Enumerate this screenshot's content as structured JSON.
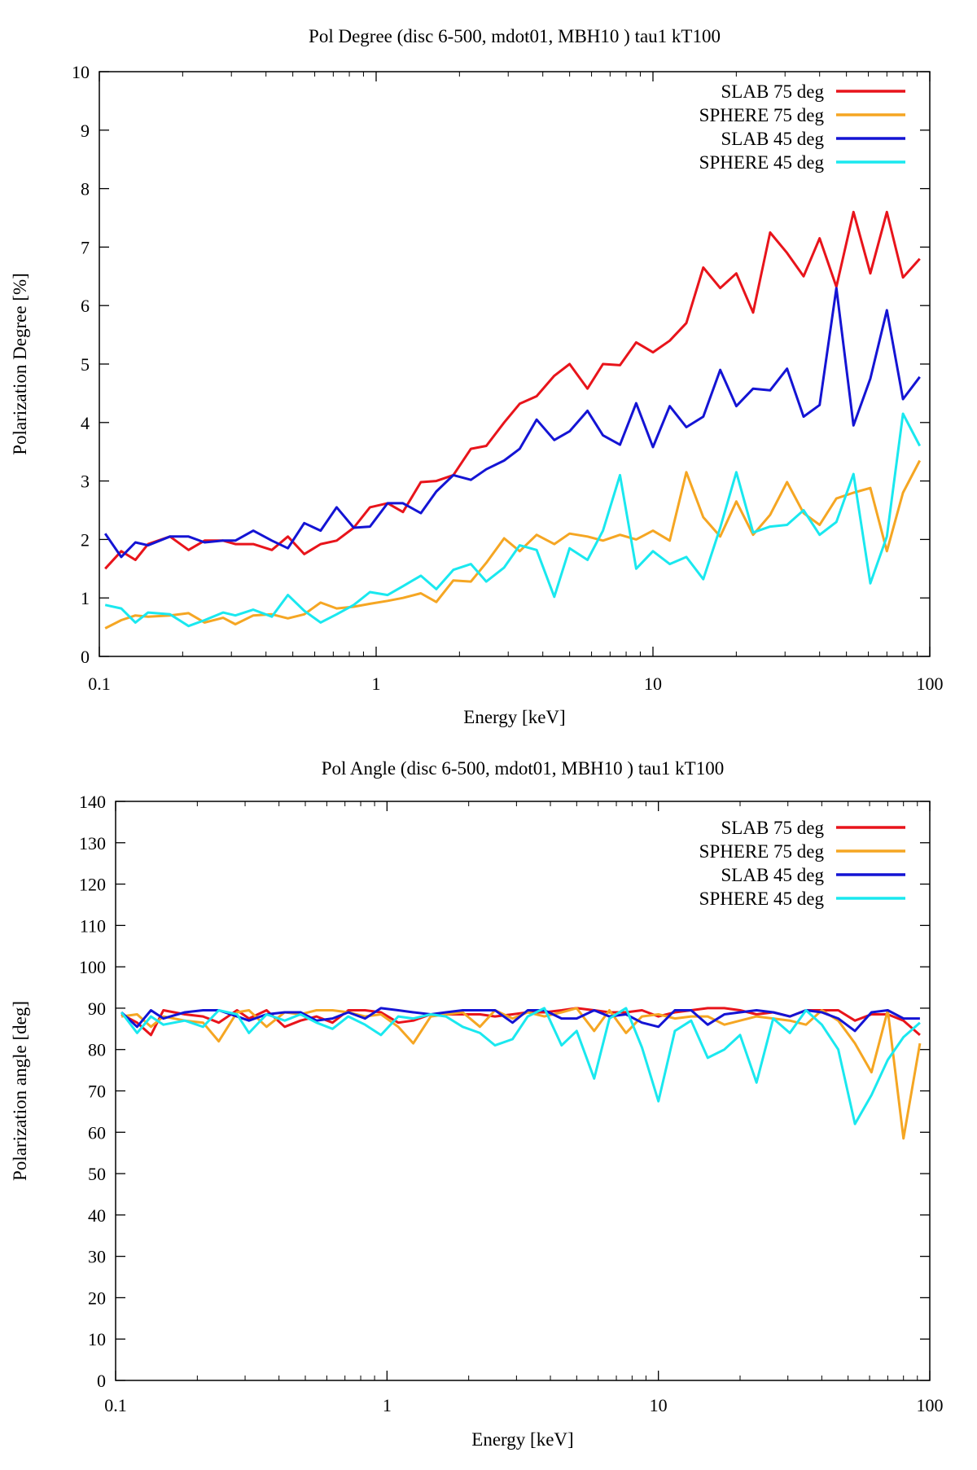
{
  "chart_data": [
    {
      "id": "degree",
      "type": "line",
      "title": "Pol Degree (disc 6-500, mdot01, MBH10 ) tau1 kT100",
      "xlabel": "Energy [keV]",
      "ylabel": "Polarization Degree [%]",
      "xscale": "log",
      "xlim": [
        0.1,
        100
      ],
      "ylim": [
        0,
        10
      ],
      "xticks": [
        0.1,
        1,
        10,
        100
      ],
      "xtick_labels": [
        "0.1",
        "1",
        "10",
        "100"
      ],
      "yticks": [
        0,
        1,
        2,
        3,
        4,
        5,
        6,
        7,
        8,
        9,
        10
      ],
      "ytick_labels": [
        "0",
        "1",
        "2",
        "3",
        "4",
        "5",
        "6",
        "7",
        "8",
        "9",
        "10"
      ],
      "grid": false,
      "legend_position": "top-right",
      "series": [
        {
          "name": "SLAB 75 deg",
          "color": "#e8141b",
          "x": [
            0.105,
            0.12,
            0.135,
            0.15,
            0.18,
            0.21,
            0.24,
            0.28,
            0.31,
            0.36,
            0.42,
            0.48,
            0.55,
            0.63,
            0.72,
            0.83,
            0.95,
            1.1,
            1.25,
            1.45,
            1.65,
            1.9,
            2.2,
            2.5,
            2.9,
            3.3,
            3.8,
            4.4,
            5.0,
            5.8,
            6.6,
            7.6,
            8.7,
            10.0,
            11.5,
            13.2,
            15.2,
            17.5,
            20.0,
            23.0,
            26.5,
            30.5,
            35.0,
            40.0,
            46.0,
            53.0,
            61.0,
            70.0,
            80.0,
            92.0
          ],
          "y": [
            1.5,
            1.8,
            1.65,
            1.92,
            2.05,
            1.82,
            1.98,
            1.98,
            1.92,
            1.92,
            1.82,
            2.05,
            1.75,
            1.92,
            1.98,
            2.2,
            2.55,
            2.62,
            2.47,
            2.98,
            3.0,
            3.1,
            3.55,
            3.6,
            4.0,
            4.32,
            4.45,
            4.8,
            5.0,
            4.58,
            5.0,
            4.98,
            5.37,
            5.2,
            5.4,
            5.7,
            6.65,
            6.3,
            6.55,
            5.88,
            7.25,
            6.9,
            6.5,
            7.15,
            6.32,
            7.6,
            6.55,
            7.6,
            6.48,
            6.8
          ]
        },
        {
          "name": "SPHERE 75 deg",
          "color": "#f5a623",
          "x": [
            0.105,
            0.12,
            0.135,
            0.15,
            0.18,
            0.21,
            0.24,
            0.28,
            0.31,
            0.36,
            0.42,
            0.48,
            0.55,
            0.63,
            0.72,
            0.83,
            0.95,
            1.1,
            1.25,
            1.45,
            1.65,
            1.9,
            2.2,
            2.5,
            2.9,
            3.3,
            3.8,
            4.4,
            5.0,
            5.8,
            6.6,
            7.6,
            8.7,
            10.0,
            11.5,
            13.2,
            15.2,
            17.5,
            20.0,
            23.0,
            26.5,
            30.5,
            35.0,
            40.0,
            46.0,
            53.0,
            61.0,
            70.0,
            80.0,
            92.0
          ],
          "y": [
            0.48,
            0.62,
            0.7,
            0.68,
            0.7,
            0.74,
            0.58,
            0.66,
            0.55,
            0.7,
            0.72,
            0.65,
            0.72,
            0.92,
            0.82,
            0.85,
            0.9,
            0.95,
            1.0,
            1.08,
            0.93,
            1.3,
            1.28,
            1.6,
            2.02,
            1.8,
            2.08,
            1.92,
            2.1,
            2.05,
            1.98,
            2.08,
            2.0,
            2.15,
            1.98,
            3.15,
            2.38,
            2.05,
            2.65,
            2.08,
            2.42,
            2.98,
            2.45,
            2.25,
            2.7,
            2.8,
            2.88,
            1.8,
            2.8,
            3.35
          ]
        },
        {
          "name": "SLAB 45 deg",
          "color": "#1414d4",
          "x": [
            0.105,
            0.12,
            0.135,
            0.15,
            0.18,
            0.21,
            0.24,
            0.28,
            0.31,
            0.36,
            0.42,
            0.48,
            0.55,
            0.63,
            0.72,
            0.83,
            0.95,
            1.1,
            1.25,
            1.45,
            1.65,
            1.9,
            2.2,
            2.5,
            2.9,
            3.3,
            3.8,
            4.4,
            5.0,
            5.8,
            6.6,
            7.6,
            8.7,
            10.0,
            11.5,
            13.2,
            15.2,
            17.5,
            20.0,
            23.0,
            26.5,
            30.5,
            35.0,
            40.0,
            46.0,
            53.0,
            61.0,
            70.0,
            80.0,
            92.0
          ],
          "y": [
            2.1,
            1.7,
            1.95,
            1.9,
            2.05,
            2.05,
            1.95,
            1.98,
            1.98,
            2.15,
            1.98,
            1.85,
            2.28,
            2.15,
            2.55,
            2.2,
            2.22,
            2.62,
            2.62,
            2.45,
            2.82,
            3.1,
            3.02,
            3.2,
            3.35,
            3.55,
            4.05,
            3.7,
            3.85,
            4.2,
            3.78,
            3.62,
            4.33,
            3.58,
            4.28,
            3.92,
            4.1,
            4.9,
            4.28,
            4.58,
            4.55,
            4.92,
            4.1,
            4.3,
            6.3,
            3.95,
            4.75,
            5.92,
            4.4,
            4.78
          ]
        },
        {
          "name": "SPHERE 45 deg",
          "color": "#1ae8ef",
          "x": [
            0.105,
            0.12,
            0.135,
            0.15,
            0.18,
            0.21,
            0.24,
            0.28,
            0.31,
            0.36,
            0.42,
            0.48,
            0.55,
            0.63,
            0.72,
            0.83,
            0.95,
            1.1,
            1.25,
            1.45,
            1.65,
            1.9,
            2.2,
            2.5,
            2.9,
            3.3,
            3.8,
            4.4,
            5.0,
            5.8,
            6.6,
            7.6,
            8.7,
            10.0,
            11.5,
            13.2,
            15.2,
            17.5,
            20.0,
            23.0,
            26.5,
            30.5,
            35.0,
            40.0,
            46.0,
            53.0,
            61.0,
            70.0,
            80.0,
            92.0
          ],
          "y": [
            0.88,
            0.82,
            0.58,
            0.75,
            0.72,
            0.52,
            0.62,
            0.75,
            0.7,
            0.8,
            0.68,
            1.05,
            0.78,
            0.58,
            0.72,
            0.88,
            1.1,
            1.05,
            1.2,
            1.38,
            1.15,
            1.48,
            1.58,
            1.28,
            1.52,
            1.9,
            1.82,
            1.02,
            1.85,
            1.65,
            2.15,
            3.1,
            1.5,
            1.8,
            1.58,
            1.7,
            1.32,
            2.2,
            3.15,
            2.12,
            2.22,
            2.25,
            2.5,
            2.08,
            2.3,
            3.12,
            1.25,
            2.05,
            4.15,
            3.6
          ]
        }
      ]
    },
    {
      "id": "angle",
      "type": "line",
      "title": "Pol Angle (disc 6-500, mdot01, MBH10 ) tau1 kT100",
      "xlabel": "Energy [keV]",
      "ylabel": "Polarization angle [deg]",
      "xscale": "log",
      "xlim": [
        0.1,
        100
      ],
      "ylim": [
        0,
        140
      ],
      "xticks": [
        0.1,
        1,
        10,
        100
      ],
      "xtick_labels": [
        "0.1",
        "1",
        "10",
        "100"
      ],
      "yticks": [
        0,
        10,
        20,
        30,
        40,
        50,
        60,
        70,
        80,
        90,
        100,
        110,
        120,
        130,
        140
      ],
      "ytick_labels": [
        "0",
        "10",
        "20",
        "30",
        "40",
        "50",
        "60",
        "70",
        "80",
        "90",
        "100",
        "110",
        "120",
        "130",
        "140"
      ],
      "grid": false,
      "legend_position": "top-right",
      "series": [
        {
          "name": "SLAB 75 deg",
          "color": "#e8141b",
          "x": [
            0.105,
            0.12,
            0.135,
            0.15,
            0.18,
            0.21,
            0.24,
            0.28,
            0.31,
            0.36,
            0.42,
            0.48,
            0.55,
            0.63,
            0.72,
            0.83,
            0.95,
            1.1,
            1.25,
            1.45,
            1.65,
            1.9,
            2.2,
            2.5,
            2.9,
            3.3,
            3.8,
            4.4,
            5.0,
            5.8,
            6.6,
            7.6,
            8.7,
            10.0,
            11.5,
            13.2,
            15.2,
            17.5,
            20.0,
            23.0,
            26.5,
            30.5,
            35.0,
            40.0,
            46.0,
            53.0,
            61.0,
            70.0,
            80.0,
            92.0
          ],
          "y": [
            88.5,
            86.5,
            83.5,
            89.5,
            88.5,
            88.0,
            86.5,
            89.5,
            87.5,
            89.5,
            85.5,
            87.0,
            88.0,
            86.5,
            89.5,
            89.5,
            89.0,
            86.5,
            87.0,
            88.5,
            88.5,
            88.5,
            88.5,
            88.0,
            88.5,
            89.0,
            89.0,
            89.5,
            90.0,
            89.5,
            89.0,
            89.0,
            89.5,
            88.0,
            89.0,
            89.5,
            90.0,
            90.0,
            89.5,
            88.5,
            89.0,
            88.0,
            89.5,
            89.5,
            89.5,
            87.0,
            88.5,
            88.5,
            87.0,
            83.5
          ]
        },
        {
          "name": "SPHERE 75 deg",
          "color": "#f5a623",
          "x": [
            0.105,
            0.12,
            0.135,
            0.15,
            0.18,
            0.21,
            0.24,
            0.28,
            0.31,
            0.36,
            0.42,
            0.48,
            0.55,
            0.63,
            0.72,
            0.83,
            0.95,
            1.1,
            1.25,
            1.45,
            1.65,
            1.9,
            2.2,
            2.5,
            2.9,
            3.3,
            3.8,
            4.4,
            5.0,
            5.8,
            6.6,
            7.6,
            8.7,
            10.0,
            11.5,
            13.2,
            15.2,
            17.5,
            20.0,
            23.0,
            26.5,
            30.5,
            35.0,
            40.0,
            46.0,
            53.0,
            61.0,
            70.0,
            80.0,
            92.0
          ],
          "y": [
            88.0,
            88.5,
            85.5,
            88.0,
            87.0,
            86.5,
            82.0,
            89.0,
            89.5,
            85.5,
            89.0,
            88.5,
            89.5,
            89.5,
            89.0,
            88.0,
            88.5,
            85.5,
            81.5,
            88.0,
            88.5,
            89.0,
            85.5,
            89.5,
            87.5,
            89.0,
            88.0,
            89.0,
            90.0,
            84.5,
            89.5,
            84.0,
            88.0,
            88.5,
            87.5,
            88.0,
            88.0,
            86.0,
            87.0,
            88.0,
            87.5,
            87.0,
            86.0,
            89.5,
            87.0,
            81.5,
            74.5,
            89.5,
            58.5,
            81.5
          ]
        },
        {
          "name": "SLAB 45 deg",
          "color": "#1414d4",
          "x": [
            0.105,
            0.12,
            0.135,
            0.15,
            0.18,
            0.21,
            0.24,
            0.28,
            0.31,
            0.36,
            0.42,
            0.48,
            0.55,
            0.63,
            0.72,
            0.83,
            0.95,
            1.1,
            1.25,
            1.45,
            1.65,
            1.9,
            2.2,
            2.5,
            2.9,
            3.3,
            3.8,
            4.4,
            5.0,
            5.8,
            6.6,
            7.6,
            8.7,
            10.0,
            11.5,
            13.2,
            15.2,
            17.5,
            20.0,
            23.0,
            26.5,
            30.5,
            35.0,
            40.0,
            46.0,
            53.0,
            61.0,
            70.0,
            80.0,
            92.0
          ],
          "y": [
            89.0,
            85.5,
            89.5,
            87.5,
            89.0,
            89.5,
            89.5,
            88.0,
            87.0,
            88.5,
            89.0,
            89.0,
            87.0,
            87.5,
            89.0,
            87.5,
            90.0,
            89.5,
            89.0,
            88.5,
            89.0,
            89.5,
            89.5,
            89.5,
            86.5,
            89.5,
            89.5,
            87.5,
            87.5,
            89.5,
            88.0,
            88.5,
            86.5,
            85.5,
            89.5,
            89.5,
            86.0,
            88.5,
            89.0,
            89.5,
            89.0,
            88.0,
            89.5,
            89.0,
            87.5,
            84.5,
            89.0,
            89.5,
            87.5,
            87.5
          ]
        },
        {
          "name": "SPHERE 45 deg",
          "color": "#1ae8ef",
          "x": [
            0.105,
            0.12,
            0.135,
            0.15,
            0.18,
            0.21,
            0.24,
            0.28,
            0.31,
            0.36,
            0.42,
            0.48,
            0.55,
            0.63,
            0.72,
            0.83,
            0.95,
            1.1,
            1.25,
            1.45,
            1.65,
            1.9,
            2.2,
            2.5,
            2.9,
            3.3,
            3.8,
            4.4,
            5.0,
            5.8,
            6.6,
            7.6,
            8.7,
            10.0,
            11.5,
            13.2,
            15.2,
            17.5,
            20.0,
            23.0,
            26.5,
            30.5,
            35.0,
            40.0,
            46.0,
            53.0,
            61.0,
            70.0,
            80.0,
            92.0
          ],
          "y": [
            89.0,
            84.0,
            88.0,
            86.0,
            87.0,
            85.5,
            89.5,
            88.5,
            84.0,
            88.5,
            87.0,
            88.5,
            86.5,
            85.0,
            88.0,
            86.0,
            83.5,
            88.0,
            87.5,
            88.5,
            88.0,
            85.5,
            84.0,
            81.0,
            82.5,
            88.0,
            90.0,
            81.0,
            84.5,
            73.0,
            87.5,
            90.0,
            80.5,
            67.5,
            84.5,
            87.0,
            78.0,
            80.0,
            83.5,
            72.0,
            87.5,
            84.0,
            89.5,
            86.0,
            80.0,
            62.0,
            69.0,
            77.5,
            83.0,
            86.5
          ]
        }
      ]
    }
  ]
}
